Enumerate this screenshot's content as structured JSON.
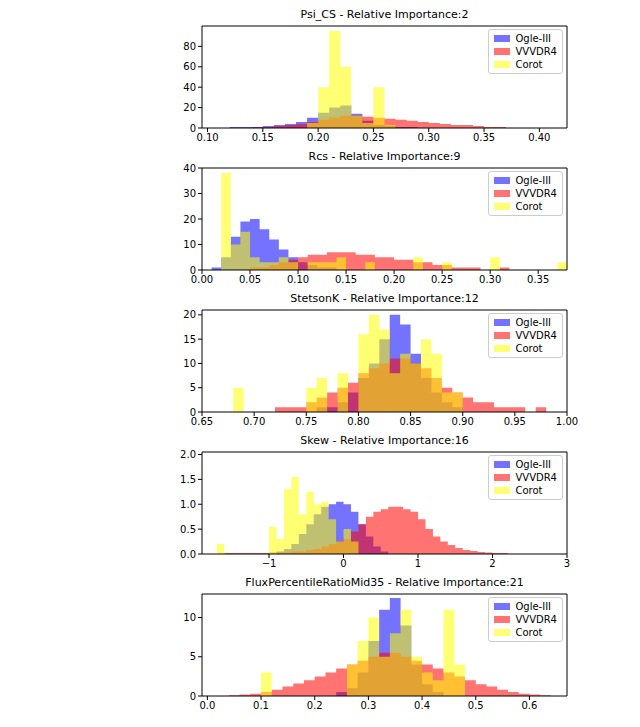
{
  "chart_data": [
    {
      "type": "histogram",
      "title": "Psi_CS - Relative Importance:2",
      "bins": [
        0.1,
        0.11,
        0.12,
        0.13,
        0.14,
        0.15,
        0.16,
        0.17,
        0.18,
        0.19,
        0.2,
        0.21,
        0.22,
        0.23,
        0.24,
        0.25,
        0.26,
        0.27,
        0.28,
        0.29,
        0.3,
        0.31,
        0.32,
        0.33,
        0.34,
        0.35,
        0.36,
        0.37,
        0.38,
        0.39,
        0.4,
        0.41,
        0.42
      ],
      "series": [
        {
          "name": "Ogle-III",
          "color": "#0000ff",
          "values": [
            0,
            0,
            1,
            1,
            1,
            2,
            3,
            4,
            6,
            10,
            15,
            20,
            22,
            14,
            7,
            3,
            2,
            1,
            1,
            0,
            0,
            0,
            0,
            0,
            0,
            0,
            0,
            0,
            0,
            0,
            0,
            0
          ]
        },
        {
          "name": "VVVDR4",
          "color": "#ff0000",
          "values": [
            0,
            0,
            0,
            0,
            1,
            1,
            2,
            3,
            4,
            6,
            8,
            10,
            12,
            12,
            11,
            10,
            9,
            8,
            7,
            6,
            5,
            4,
            3,
            3,
            2,
            1,
            1,
            0,
            0,
            0,
            0,
            0
          ]
        },
        {
          "name": "Corot",
          "color": "#ffff00",
          "values": [
            0,
            0,
            0,
            0,
            0,
            0,
            0,
            0,
            0,
            5,
            40,
            95,
            60,
            12,
            5,
            40,
            3,
            0,
            0,
            0,
            0,
            0,
            0,
            0,
            0,
            0,
            0,
            0,
            0,
            0,
            0,
            0
          ]
        }
      ],
      "xlim": [
        0.095,
        0.425
      ],
      "xticks": [
        {
          "value": 0.1,
          "label": "0.10"
        },
        0.15,
        {
          "value": 0.2,
          "label": "0.20"
        },
        0.25,
        {
          "value": 0.3,
          "label": "0.30"
        },
        0.35,
        {
          "value": 0.4,
          "label": "0.40"
        }
      ],
      "ylim": [
        0,
        100
      ],
      "yticks": [
        0,
        20,
        40,
        60,
        80
      ],
      "legend": "upper right"
    },
    {
      "type": "histogram",
      "title": "Rcs - Relative Importance:9",
      "bins": [
        0,
        0.01,
        0.02,
        0.03,
        0.04,
        0.05,
        0.06,
        0.07,
        0.08,
        0.09,
        0.1,
        0.11,
        0.12,
        0.13,
        0.14,
        0.15,
        0.16,
        0.17,
        0.18,
        0.19,
        0.2,
        0.21,
        0.22,
        0.23,
        0.24,
        0.25,
        0.26,
        0.27,
        0.28,
        0.29,
        0.3,
        0.31,
        0.32,
        0.33,
        0.34,
        0.35,
        0.36,
        0.37,
        0.38
      ],
      "series": [
        {
          "name": "Ogle-III",
          "color": "#0000ff",
          "values": [
            0,
            1,
            5,
            13,
            19,
            20,
            16,
            12,
            8,
            5,
            3,
            2,
            1,
            1,
            0,
            0,
            0,
            0,
            0,
            0,
            0,
            0,
            0,
            0,
            0,
            0,
            0,
            0,
            0,
            0,
            0,
            0,
            0,
            0,
            0,
            0,
            0,
            0
          ]
        },
        {
          "name": "VVVDR4",
          "color": "#ff0000",
          "values": [
            0,
            0,
            0,
            0,
            0,
            1,
            1,
            2,
            3,
            4,
            5,
            6,
            6,
            7,
            7,
            7,
            6,
            6,
            5,
            5,
            4,
            4,
            3,
            3,
            2,
            2,
            1,
            1,
            1,
            0,
            0,
            1,
            0,
            0,
            0,
            0,
            0,
            0
          ]
        },
        {
          "name": "Corot",
          "color": "#ffff00",
          "values": [
            0,
            0,
            38,
            10,
            15,
            5,
            3,
            3,
            5,
            3,
            0,
            3,
            3,
            3,
            5,
            0,
            0,
            3,
            0,
            0,
            0,
            0,
            5,
            0,
            0,
            3,
            0,
            0,
            0,
            0,
            5,
            0,
            0,
            0,
            0,
            0,
            0,
            3
          ]
        }
      ],
      "xlim": [
        0,
        0.38
      ],
      "xticks": [
        {
          "value": 0,
          "label": "0.00"
        },
        0.05,
        {
          "value": 0.1,
          "label": "0.10"
        },
        0.15,
        {
          "value": 0.2,
          "label": "0.20"
        },
        0.25,
        {
          "value": 0.3,
          "label": "0.30"
        },
        0.35
      ],
      "ylim": [
        0,
        40
      ],
      "yticks": [
        0,
        10,
        20,
        30,
        40
      ],
      "legend": "upper right"
    },
    {
      "type": "histogram",
      "title": "StetsonK - Relative Importance:12",
      "bins": [
        0.65,
        0.66,
        0.67,
        0.68,
        0.69,
        0.7,
        0.71,
        0.72,
        0.73,
        0.74,
        0.75,
        0.76,
        0.77,
        0.78,
        0.79,
        0.8,
        0.81,
        0.82,
        0.83,
        0.84,
        0.85,
        0.86,
        0.87,
        0.88,
        0.89,
        0.9,
        0.91,
        0.92,
        0.93,
        0.94,
        0.95,
        0.96,
        0.97,
        0.98,
        0.99
      ],
      "series": [
        {
          "name": "Ogle-III",
          "color": "#0000ff",
          "values": [
            0,
            0,
            0,
            0,
            0,
            0,
            0,
            0,
            0,
            0,
            0,
            1,
            1,
            2,
            4,
            7,
            10,
            15,
            20,
            18,
            12,
            7,
            4,
            2,
            1,
            0,
            0,
            0,
            0,
            0,
            0,
            0,
            0,
            0
          ]
        },
        {
          "name": "VVVDR4",
          "color": "#ff0000",
          "values": [
            0,
            0,
            0,
            0,
            0,
            0,
            0,
            1,
            1,
            1,
            2,
            3,
            4,
            5,
            6,
            8,
            9,
            10,
            11,
            11,
            10,
            9,
            7,
            5,
            4,
            3,
            2,
            2,
            1,
            1,
            1,
            0,
            1,
            0
          ]
        },
        {
          "name": "Corot",
          "color": "#ffff00",
          "values": [
            0,
            0,
            0,
            5,
            0,
            0,
            0,
            0,
            0,
            0,
            5,
            7,
            0,
            8,
            0,
            16,
            20,
            17,
            8,
            12,
            10,
            15,
            12,
            4,
            4,
            0,
            0,
            0,
            0,
            0,
            0,
            0,
            0,
            0
          ]
        }
      ],
      "xlim": [
        0.65,
        1
      ],
      "xticks": [
        0.65,
        {
          "value": 0.7,
          "label": "0.70"
        },
        0.75,
        {
          "value": 0.8,
          "label": "0.80"
        },
        0.85,
        {
          "value": 0.9,
          "label": "0.90"
        },
        0.95,
        {
          "value": 1,
          "label": "1.00"
        }
      ],
      "ylim": [
        0,
        21
      ],
      "yticks": [
        0,
        5,
        10,
        15,
        20
      ],
      "legend": "upper right"
    },
    {
      "type": "histogram",
      "title": "Skew - Relative Importance:16",
      "bins": [
        -1.8,
        -1.7,
        -1.6,
        -1.5,
        -1.4,
        -1.3,
        -1.2,
        -1.1,
        -1,
        -0.9,
        -0.8,
        -0.7,
        -0.6,
        -0.5,
        -0.4,
        -0.3,
        -0.2,
        -0.1,
        0,
        0.1,
        0.2,
        0.3,
        0.4,
        0.5,
        0.6,
        0.7,
        0.8,
        0.9,
        1,
        1.1,
        1.2,
        1.3,
        1.4,
        1.5,
        1.6,
        1.7,
        1.8,
        1.9,
        2,
        2.1,
        2.2,
        2.3,
        2.4,
        2.5,
        2.6,
        2.7,
        2.8,
        2.9,
        3
      ],
      "series": [
        {
          "name": "Ogle-III",
          "color": "#0000ff",
          "values": [
            0,
            0,
            0,
            0,
            0,
            0,
            0,
            0,
            0,
            0.05,
            0.1,
            0.2,
            0.4,
            0.6,
            0.8,
            0.95,
            1,
            1.05,
            1,
            0.85,
            0.6,
            0.35,
            0.15,
            0.05,
            0,
            0,
            0,
            0,
            0,
            0,
            0,
            0,
            0,
            0,
            0,
            0,
            0,
            0,
            0,
            0,
            0,
            0,
            0,
            0,
            0,
            0,
            0,
            0
          ]
        },
        {
          "name": "VVVDR4",
          "color": "#ff0000",
          "values": [
            0,
            0,
            0.02,
            0.02,
            0.02,
            0.02,
            0.02,
            0.02,
            0.03,
            0.03,
            0.03,
            0.05,
            0.05,
            0.08,
            0.1,
            0.15,
            0.2,
            0.25,
            0.3,
            0.45,
            0.6,
            0.75,
            0.85,
            0.9,
            0.95,
            0.95,
            0.9,
            0.85,
            0.7,
            0.5,
            0.35,
            0.25,
            0.18,
            0.12,
            0.08,
            0.06,
            0.04,
            0.03,
            0.02,
            0.02,
            0,
            0,
            0,
            0,
            0,
            0,
            0,
            0
          ]
        },
        {
          "name": "Corot",
          "color": "#ffff00",
          "values": [
            0,
            0.2,
            0,
            0,
            0,
            0,
            0,
            0,
            0.55,
            0.3,
            1.3,
            1.55,
            0.8,
            1.25,
            1,
            1.05,
            0.7,
            0.25,
            0.5,
            0.25,
            0,
            0,
            0,
            0,
            0,
            0,
            0,
            0,
            0,
            0,
            0,
            0,
            0,
            0,
            0,
            0,
            0,
            0,
            0,
            0,
            0,
            0,
            0,
            0,
            0,
            0,
            0,
            0
          ]
        }
      ],
      "xlim": [
        -1.9,
        3
      ],
      "xticks": [
        {
          "value": -1,
          "label": "−1"
        },
        0,
        1,
        2,
        3
      ],
      "ylim": [
        0,
        2.05
      ],
      "yticks": [
        {
          "value": 0,
          "label": "0.0"
        },
        0.5,
        {
          "value": 1,
          "label": "1.0"
        },
        1.5,
        {
          "value": 2,
          "label": "2.0"
        }
      ],
      "legend": "upper right"
    },
    {
      "type": "histogram",
      "title": "FluxPercentileRatioMid35 - Relative Importance:21",
      "bins": [
        0,
        0.02,
        0.04,
        0.06,
        0.08,
        0.1,
        0.12,
        0.14,
        0.16,
        0.18,
        0.2,
        0.22,
        0.24,
        0.26,
        0.28,
        0.3,
        0.32,
        0.34,
        0.36,
        0.38,
        0.4,
        0.42,
        0.44,
        0.46,
        0.48,
        0.5,
        0.52,
        0.54,
        0.56,
        0.58,
        0.6,
        0.62,
        0.64,
        0.66
      ],
      "series": [
        {
          "name": "Ogle-III",
          "color": "#0000ff",
          "values": [
            0,
            0,
            0,
            0,
            0,
            0,
            0,
            0,
            0,
            0,
            0,
            0,
            0.5,
            1,
            3,
            7,
            11,
            12.5,
            9,
            4,
            1.5,
            0.5,
            0,
            0,
            0,
            0,
            0,
            0,
            0,
            0,
            0,
            0,
            0
          ]
        },
        {
          "name": "VVVDR4",
          "color": "#ff0000",
          "values": [
            0,
            0,
            0.1,
            0.2,
            0.3,
            0.5,
            0.8,
            1.2,
            1.6,
            2,
            2.5,
            3,
            3.5,
            4,
            4.5,
            5,
            5.5,
            5.5,
            5,
            4.5,
            4,
            3.5,
            3,
            2.5,
            2,
            1.5,
            1.2,
            0.8,
            0.5,
            0.3,
            0.2,
            0.1,
            0
          ]
        },
        {
          "name": "Corot",
          "color": "#ffff00",
          "values": [
            0,
            0,
            0,
            0,
            0,
            3,
            0,
            0,
            0,
            0,
            0,
            0,
            0,
            4,
            7,
            10,
            5,
            8,
            11,
            5,
            3,
            2,
            11,
            4,
            0,
            0,
            0,
            0,
            0,
            0,
            0,
            0,
            0
          ]
        }
      ],
      "xlim": [
        -0.01,
        0.67
      ],
      "xticks": [
        {
          "value": 0,
          "label": "0.0"
        },
        0.1,
        0.2,
        0.3,
        0.4,
        0.5,
        0.6
      ],
      "ylim": [
        0,
        13
      ],
      "yticks": [
        0,
        5,
        10
      ],
      "legend": "upper right"
    }
  ]
}
